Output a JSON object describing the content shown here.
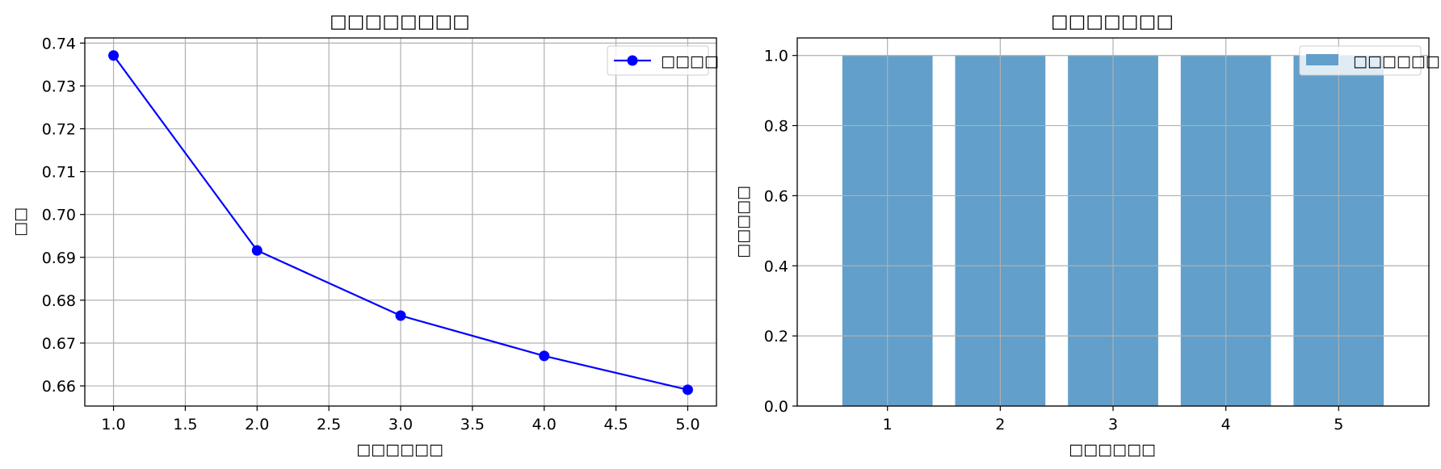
{
  "chart_data": [
    {
      "type": "line",
      "title": "□□□□□□□□",
      "xlabel": "□□□□□□",
      "ylabel": "□□",
      "xlim": [
        0.8,
        5.2
      ],
      "ylim": [
        0.6553,
        0.7412
      ],
      "xticks": [
        "1.0",
        "1.5",
        "2.0",
        "2.5",
        "3.0",
        "3.5",
        "4.0",
        "4.5",
        "5.0"
      ],
      "yticks": [
        "0.66",
        "0.67",
        "0.68",
        "0.69",
        "0.70",
        "0.71",
        "0.72",
        "0.73",
        "0.74"
      ],
      "grid": true,
      "legend_position": "top-right",
      "series": [
        {
          "name": "□□□□",
          "color": "#0000ff",
          "marker": "circle",
          "x": [
            1,
            2,
            3,
            4,
            5
          ],
          "y": [
            0.7371,
            0.6916,
            0.6764,
            0.667,
            0.6591
          ]
        }
      ]
    },
    {
      "type": "bar",
      "title": "□□□□□□□",
      "xlabel": "□□□□□□",
      "ylabel": "□□□□□",
      "ylim": [
        0,
        1.05
      ],
      "categories": [
        "1",
        "2",
        "3",
        "4",
        "5"
      ],
      "yticks": [
        "0.0",
        "0.2",
        "0.4",
        "0.6",
        "0.8",
        "1.0"
      ],
      "grid": true,
      "legend_position": "top-right",
      "series": [
        {
          "name": "□□□□□□",
          "color": "#629fca",
          "values": [
            1.0,
            1.0,
            1.0,
            1.0,
            1.0
          ]
        }
      ]
    }
  ]
}
